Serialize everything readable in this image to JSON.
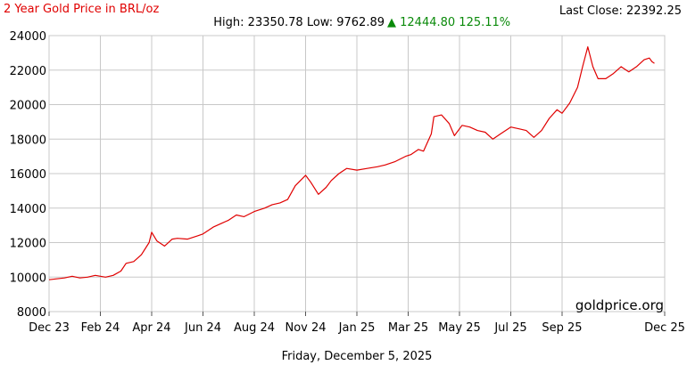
{
  "header": {
    "title": "2 Year Gold Price in BRL/oz",
    "last_close_label": "Last Close: 22392.25",
    "high_low": "High: 23350.78 Low: 9762.89",
    "change": "▲ 12444.80 125.11%"
  },
  "footer": {
    "date": "Friday, December 5, 2025",
    "watermark": "goldprice.org"
  },
  "colors": {
    "line": "#e00000",
    "title": "#e00000",
    "change": "#0a8a0a",
    "grid": "#c8c8c8"
  },
  "chart_data": {
    "type": "line",
    "title": "2 Year Gold Price in BRL/oz",
    "xlabel": "",
    "ylabel": "",
    "grid": true,
    "xlim": [
      0,
      24
    ],
    "ylim": [
      8000,
      24000
    ],
    "y_ticks": [
      8000,
      10000,
      12000,
      14000,
      16000,
      18000,
      20000,
      22000,
      24000
    ],
    "x_ticks": [
      {
        "label": "Dec 23",
        "t": 0
      },
      {
        "label": "Feb 24",
        "t": 2
      },
      {
        "label": "Apr 24",
        "t": 4
      },
      {
        "label": "Jun 24",
        "t": 6
      },
      {
        "label": "Aug 24",
        "t": 8
      },
      {
        "label": "Nov 24",
        "t": 10
      },
      {
        "label": "Jan 25",
        "t": 12
      },
      {
        "label": "Mar 25",
        "t": 14
      },
      {
        "label": "May 25",
        "t": 16
      },
      {
        "label": "Jul 25",
        "t": 18
      },
      {
        "label": "Sep 25",
        "t": 20
      },
      {
        "label": "Dec 25",
        "t": 24
      }
    ],
    "series": [
      {
        "values": [
          [
            0,
            9850
          ],
          [
            0.3,
            9900
          ],
          [
            0.6,
            9950
          ],
          [
            0.9,
            10050
          ],
          [
            1.2,
            9950
          ],
          [
            1.5,
            10000
          ],
          [
            1.8,
            10100
          ],
          [
            2.0,
            10050
          ],
          [
            2.2,
            10000
          ],
          [
            2.5,
            10100
          ],
          [
            2.8,
            10350
          ],
          [
            3.0,
            10800
          ],
          [
            3.3,
            10900
          ],
          [
            3.6,
            11300
          ],
          [
            3.9,
            12000
          ],
          [
            4.0,
            12600
          ],
          [
            4.2,
            12100
          ],
          [
            4.5,
            11800
          ],
          [
            4.8,
            12200
          ],
          [
            5.0,
            12250
          ],
          [
            5.4,
            12200
          ],
          [
            5.8,
            12400
          ],
          [
            6.0,
            12500
          ],
          [
            6.4,
            12900
          ],
          [
            6.7,
            13100
          ],
          [
            7.0,
            13300
          ],
          [
            7.3,
            13600
          ],
          [
            7.6,
            13500
          ],
          [
            8.0,
            13800
          ],
          [
            8.4,
            14000
          ],
          [
            8.7,
            14200
          ],
          [
            9.0,
            14300
          ],
          [
            9.3,
            14500
          ],
          [
            9.6,
            15300
          ],
          [
            10.0,
            15900
          ],
          [
            10.2,
            15500
          ],
          [
            10.5,
            14800
          ],
          [
            10.8,
            15200
          ],
          [
            11.0,
            15600
          ],
          [
            11.3,
            16000
          ],
          [
            11.6,
            16300
          ],
          [
            12.0,
            16200
          ],
          [
            12.4,
            16300
          ],
          [
            12.8,
            16400
          ],
          [
            13.1,
            16500
          ],
          [
            13.5,
            16700
          ],
          [
            13.9,
            17000
          ],
          [
            14.1,
            17100
          ],
          [
            14.4,
            17400
          ],
          [
            14.6,
            17300
          ],
          [
            14.9,
            18300
          ],
          [
            15.0,
            19300
          ],
          [
            15.3,
            19400
          ],
          [
            15.6,
            18900
          ],
          [
            15.8,
            18200
          ],
          [
            16.1,
            18800
          ],
          [
            16.4,
            18700
          ],
          [
            16.7,
            18500
          ],
          [
            17.0,
            18400
          ],
          [
            17.3,
            18000
          ],
          [
            17.6,
            18300
          ],
          [
            18.0,
            18700
          ],
          [
            18.3,
            18600
          ],
          [
            18.6,
            18500
          ],
          [
            18.9,
            18100
          ],
          [
            19.2,
            18500
          ],
          [
            19.5,
            19200
          ],
          [
            19.8,
            19700
          ],
          [
            20.0,
            19500
          ],
          [
            20.3,
            20100
          ],
          [
            20.6,
            21000
          ],
          [
            20.8,
            22200
          ],
          [
            21.0,
            23350
          ],
          [
            21.2,
            22200
          ],
          [
            21.4,
            21500
          ],
          [
            21.7,
            21500
          ],
          [
            22.0,
            21800
          ],
          [
            22.3,
            22200
          ],
          [
            22.6,
            21900
          ],
          [
            22.9,
            22200
          ],
          [
            23.2,
            22600
          ],
          [
            23.4,
            22700
          ],
          [
            23.5,
            22500
          ],
          [
            23.6,
            22392
          ]
        ]
      }
    ]
  }
}
